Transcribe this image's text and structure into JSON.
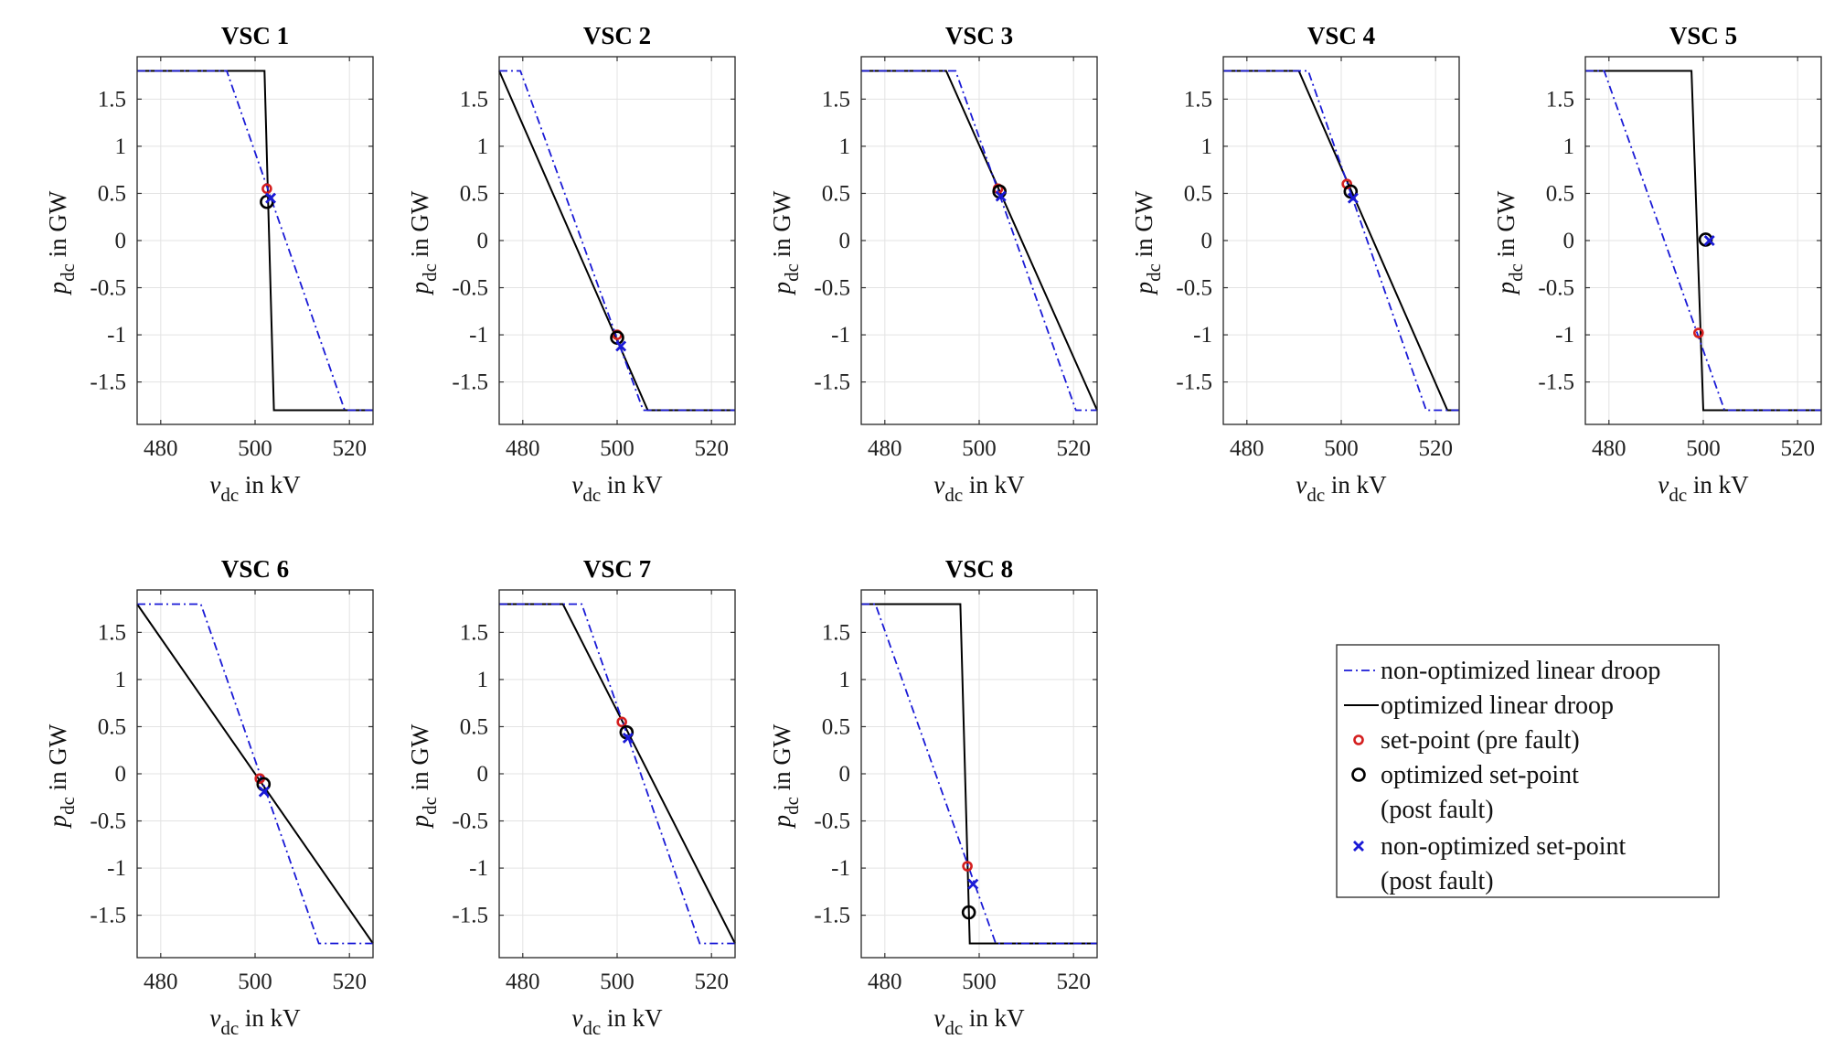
{
  "chart_data": {
    "type": "line",
    "xlabel": {
      "var": "v",
      "sub": "dc",
      "unit": " in kV"
    },
    "ylabel": {
      "var": "p",
      "sub": "dc",
      "unit": " in GW"
    },
    "xlim": [
      475,
      525
    ],
    "ylim": [
      -1.95,
      1.95
    ],
    "xticks": [
      480,
      500,
      520
    ],
    "yticks": [
      1.5,
      1,
      0.5,
      0,
      -0.5,
      -1,
      -1.5
    ],
    "grid": true,
    "legend_position": "right",
    "colors": {
      "non_optimized": "#1a1ad6",
      "optimized": "#000000",
      "pre_fault": "#d41f1f",
      "post_fault_opt": "#000000",
      "post_fault_nonopt": "#1a1ad6"
    },
    "legend": [
      {
        "key": "non_optimized",
        "marker": "dashdot",
        "lines": [
          "non-optimized linear droop"
        ]
      },
      {
        "key": "optimized",
        "marker": "solid",
        "lines": [
          "optimized linear droop"
        ]
      },
      {
        "key": "pre_fault",
        "marker": "small-circle",
        "lines": [
          "set-point (pre fault)"
        ]
      },
      {
        "key": "post_fault_opt",
        "marker": "circle",
        "lines": [
          "optimized set-point",
          "(post fault)"
        ]
      },
      {
        "key": "post_fault_nonopt",
        "marker": "x",
        "lines": [
          "non-optimized set-point",
          "(post fault)"
        ]
      }
    ],
    "panels": [
      {
        "title": "VSC 1",
        "series": [
          {
            "key": "optimized",
            "x": [
              475,
              502,
              504,
              525
            ],
            "y": [
              1.8,
              1.8,
              -1.8,
              -1.8
            ]
          },
          {
            "key": "non_optimized",
            "x": [
              475,
              494,
              519,
              525
            ],
            "y": [
              1.8,
              1.8,
              -1.8,
              -1.8
            ]
          }
        ],
        "pre_fault": [
          502.5,
          0.55
        ],
        "post_fault_opt": [
          502.5,
          0.41
        ],
        "post_fault_nonopt": [
          503.3,
          0.45
        ]
      },
      {
        "title": "VSC 2",
        "series": [
          {
            "key": "optimized",
            "x": [
              475,
              506.5,
              525
            ],
            "y": [
              1.8,
              -1.8,
              -1.8
            ]
          },
          {
            "key": "non_optimized",
            "x": [
              475,
              479.5,
              505.5,
              525
            ],
            "y": [
              1.8,
              1.8,
              -1.8,
              -1.8
            ]
          }
        ],
        "pre_fault": [
          500,
          -1.0
        ],
        "post_fault_opt": [
          500,
          -1.03
        ],
        "post_fault_nonopt": [
          500.8,
          -1.12
        ]
      },
      {
        "title": "VSC 3",
        "series": [
          {
            "key": "optimized",
            "x": [
              475,
              493,
              525
            ],
            "y": [
              1.8,
              1.8,
              -1.8
            ]
          },
          {
            "key": "non_optimized",
            "x": [
              475,
              495,
              520.5,
              525
            ],
            "y": [
              1.8,
              1.8,
              -1.8,
              -1.8
            ]
          }
        ],
        "pre_fault": [
          504,
          0.55
        ],
        "post_fault_opt": [
          504.3,
          0.52
        ],
        "post_fault_nonopt": [
          504.6,
          0.47
        ]
      },
      {
        "title": "VSC 4",
        "series": [
          {
            "key": "optimized",
            "x": [
              475,
              491,
              522.5,
              525
            ],
            "y": [
              1.8,
              1.8,
              -1.8,
              -1.8
            ]
          },
          {
            "key": "non_optimized",
            "x": [
              475,
              493,
              518,
              525
            ],
            "y": [
              1.8,
              1.8,
              -1.8,
              -1.8
            ]
          }
        ],
        "pre_fault": [
          501.2,
          0.6
        ],
        "post_fault_opt": [
          502,
          0.52
        ],
        "post_fault_nonopt": [
          502.5,
          0.45
        ]
      },
      {
        "title": "VSC 5",
        "series": [
          {
            "key": "optimized",
            "x": [
              475,
              497.5,
              500,
              525
            ],
            "y": [
              1.8,
              1.8,
              -1.8,
              -1.8
            ]
          },
          {
            "key": "non_optimized",
            "x": [
              475,
              479,
              504.5,
              525
            ],
            "y": [
              1.8,
              1.8,
              -1.8,
              -1.8
            ]
          }
        ],
        "pre_fault": [
          499,
          -0.98
        ],
        "post_fault_opt": [
          500.5,
          0.01
        ],
        "post_fault_nonopt": [
          501.3,
          0.0
        ]
      },
      {
        "title": "VSC 6",
        "series": [
          {
            "key": "optimized",
            "x": [
              475,
              525
            ],
            "y": [
              1.8,
              -1.8
            ]
          },
          {
            "key": "non_optimized",
            "x": [
              475,
              488.5,
              513.5,
              525
            ],
            "y": [
              1.8,
              1.8,
              -1.8,
              -1.8
            ]
          }
        ],
        "pre_fault": [
          501,
          -0.05
        ],
        "post_fault_opt": [
          501.8,
          -0.11
        ],
        "post_fault_nonopt": [
          501.9,
          -0.19
        ]
      },
      {
        "title": "VSC 7",
        "series": [
          {
            "key": "optimized",
            "x": [
              475,
              488.5,
              525
            ],
            "y": [
              1.8,
              1.8,
              -1.8
            ]
          },
          {
            "key": "non_optimized",
            "x": [
              475,
              492.5,
              517.5,
              525
            ],
            "y": [
              1.8,
              1.8,
              -1.8,
              -1.8
            ]
          }
        ],
        "pre_fault": [
          501,
          0.55
        ],
        "post_fault_opt": [
          502,
          0.44
        ],
        "post_fault_nonopt": [
          502.3,
          0.38
        ]
      },
      {
        "title": "VSC 8",
        "series": [
          {
            "key": "optimized",
            "x": [
              475,
              496,
              498,
              525
            ],
            "y": [
              1.8,
              1.8,
              -1.8,
              -1.8
            ]
          },
          {
            "key": "non_optimized",
            "x": [
              475,
              478,
              503.5,
              525
            ],
            "y": [
              1.8,
              1.8,
              -1.8,
              -1.8
            ]
          }
        ],
        "pre_fault": [
          497.5,
          -0.98
        ],
        "post_fault_opt": [
          497.8,
          -1.47
        ],
        "post_fault_nonopt": [
          498.7,
          -1.17
        ]
      }
    ]
  }
}
